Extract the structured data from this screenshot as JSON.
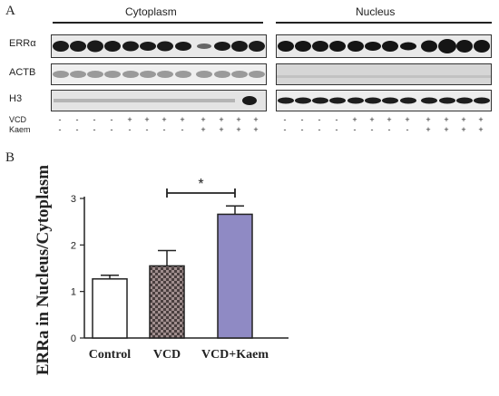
{
  "panel_a": {
    "label": "A",
    "groups": [
      "Cytoplasm",
      "Nucleus"
    ],
    "rows": [
      "ERRα",
      "ACTB",
      "H3"
    ],
    "treatment_labels": [
      "VCD",
      "Kaem"
    ],
    "cytoplasm_vcd": [
      "-",
      "-",
      "-",
      "-",
      "+",
      "+",
      "+",
      "+",
      "+",
      "+",
      "+",
      "+"
    ],
    "cytoplasm_kaem": [
      "-",
      "-",
      "-",
      "-",
      "-",
      "-",
      "-",
      "-",
      "+",
      "+",
      "+",
      "+"
    ],
    "nucleus_vcd": [
      "-",
      "-",
      "-",
      "-",
      "+",
      "+",
      "+",
      "+",
      "+",
      "+",
      "+",
      "+"
    ],
    "nucleus_kaem": [
      "-",
      "-",
      "-",
      "-",
      "-",
      "-",
      "-",
      "-",
      "+",
      "+",
      "+",
      "+"
    ]
  },
  "panel_b": {
    "label": "B",
    "significance": "*"
  },
  "chart_data": {
    "type": "bar",
    "categories": [
      "Control",
      "VCD",
      "VCD+Kaem"
    ],
    "values": [
      1.27,
      1.55,
      2.66
    ],
    "errors": [
      0.08,
      0.33,
      0.18
    ],
    "ylabel": "ERRa in Nucleus/Cytoplasm",
    "xlabel": "",
    "ylim": [
      0,
      3
    ],
    "yticks": [
      "0",
      "1",
      "2",
      "3"
    ],
    "bar_fills": [
      "#ffffff",
      "#7a6a6a",
      "#8f8ac4"
    ],
    "bar_patterns": [
      "none",
      "checker",
      "none"
    ],
    "significance": {
      "between": [
        "VCD",
        "VCD+Kaem"
      ],
      "label": "*"
    },
    "grid": false
  }
}
